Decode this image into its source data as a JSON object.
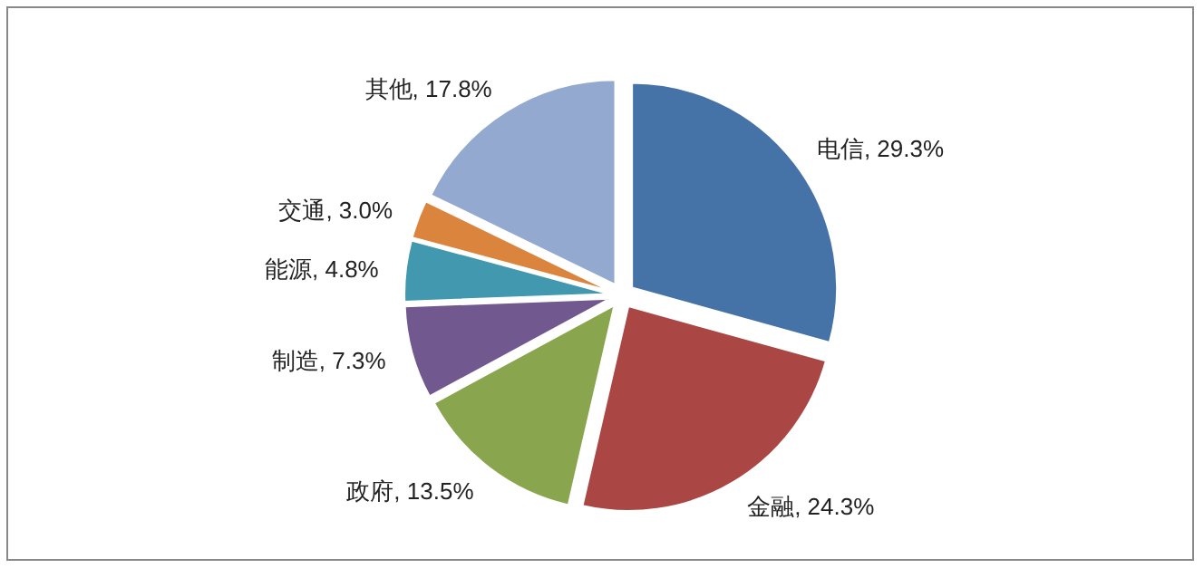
{
  "chart_data": {
    "type": "pie",
    "categories": [
      "电信",
      "金融",
      "政府",
      "制造",
      "能源",
      "交通",
      "其他"
    ],
    "values": [
      29.3,
      24.3,
      13.5,
      7.3,
      4.8,
      3.0,
      17.8
    ],
    "colors": [
      "#4572a7",
      "#aa4643",
      "#89a54e",
      "#71588f",
      "#4198af",
      "#db843d",
      "#93a9cf"
    ],
    "value_labels": [
      "29.3%",
      "24.3%",
      "13.5%",
      "7.3%",
      "4.8%",
      "3.0%",
      "17.8%"
    ]
  }
}
